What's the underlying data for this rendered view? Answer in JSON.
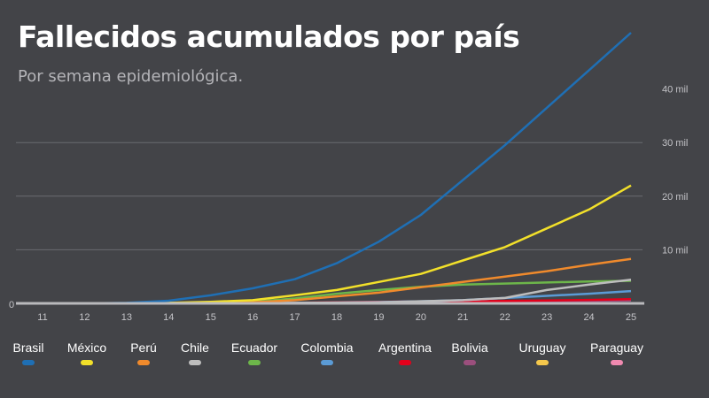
{
  "chart_data": {
    "type": "line",
    "title": "Fallecidos acumulados por país",
    "subtitle": "Por semana epidemiológica.",
    "xlabel": "",
    "ylabel": "",
    "x": [
      11,
      12,
      13,
      14,
      15,
      16,
      17,
      18,
      19,
      20,
      21,
      22,
      23,
      24,
      25
    ],
    "ylim": [
      0,
      50000
    ],
    "yticks": [
      {
        "value": 0,
        "label": "0"
      },
      {
        "value": 10000,
        "label": "10 mil"
      },
      {
        "value": 20000,
        "label": "20 mil"
      },
      {
        "value": 30000,
        "label": "30 mil"
      },
      {
        "value": 40000,
        "label": "40 mil"
      }
    ],
    "grid": true,
    "legend": "bottom",
    "series": [
      {
        "name": "Brasil",
        "color": "#1f6fb4",
        "values": [
          0,
          0,
          100,
          500,
          1500,
          2800,
          4500,
          7500,
          11500,
          16500,
          23000,
          29500,
          36500,
          43500,
          50500
        ]
      },
      {
        "name": "México",
        "color": "#f2e02a",
        "values": [
          0,
          0,
          30,
          100,
          300,
          600,
          1500,
          2500,
          4000,
          5500,
          8000,
          10500,
          14000,
          17500,
          22000
        ]
      },
      {
        "name": "Perú",
        "color": "#f08a2c",
        "values": [
          0,
          0,
          10,
          40,
          100,
          200,
          600,
          1300,
          2000,
          3000,
          4000,
          5000,
          6000,
          7200,
          8300
        ]
      },
      {
        "name": "Chile",
        "color": "#bdbdbd",
        "values": [
          0,
          0,
          0,
          10,
          30,
          60,
          100,
          150,
          200,
          400,
          600,
          1000,
          2500,
          3500,
          4400
        ]
      },
      {
        "name": "Ecuador",
        "color": "#6db64a",
        "values": [
          0,
          0,
          10,
          50,
          150,
          300,
          900,
          1800,
          2500,
          3100,
          3500,
          3700,
          3900,
          4100,
          4200
        ]
      },
      {
        "name": "Colombia",
        "color": "#5b9bd5",
        "values": [
          0,
          0,
          0,
          10,
          30,
          60,
          100,
          150,
          250,
          400,
          600,
          1000,
          1400,
          1800,
          2300
        ]
      },
      {
        "name": "Argentina",
        "color": "#e3001b",
        "values": [
          0,
          0,
          0,
          10,
          20,
          50,
          100,
          200,
          300,
          350,
          400,
          450,
          550,
          650,
          800
        ]
      },
      {
        "name": "Bolivia",
        "color": "#9b4f7d",
        "values": [
          0,
          0,
          0,
          0,
          5,
          10,
          20,
          40,
          80,
          120,
          200,
          280,
          350,
          430,
          520
        ]
      },
      {
        "name": "Uruguay",
        "color": "#f5c84c",
        "values": [
          0,
          0,
          0,
          0,
          5,
          10,
          15,
          18,
          20,
          20,
          22,
          22,
          23,
          24,
          25
        ]
      },
      {
        "name": "Paraguay",
        "color": "#f08ab0",
        "values": [
          0,
          0,
          0,
          0,
          3,
          5,
          8,
          9,
          10,
          11,
          11,
          12,
          13,
          14,
          15
        ]
      }
    ]
  }
}
